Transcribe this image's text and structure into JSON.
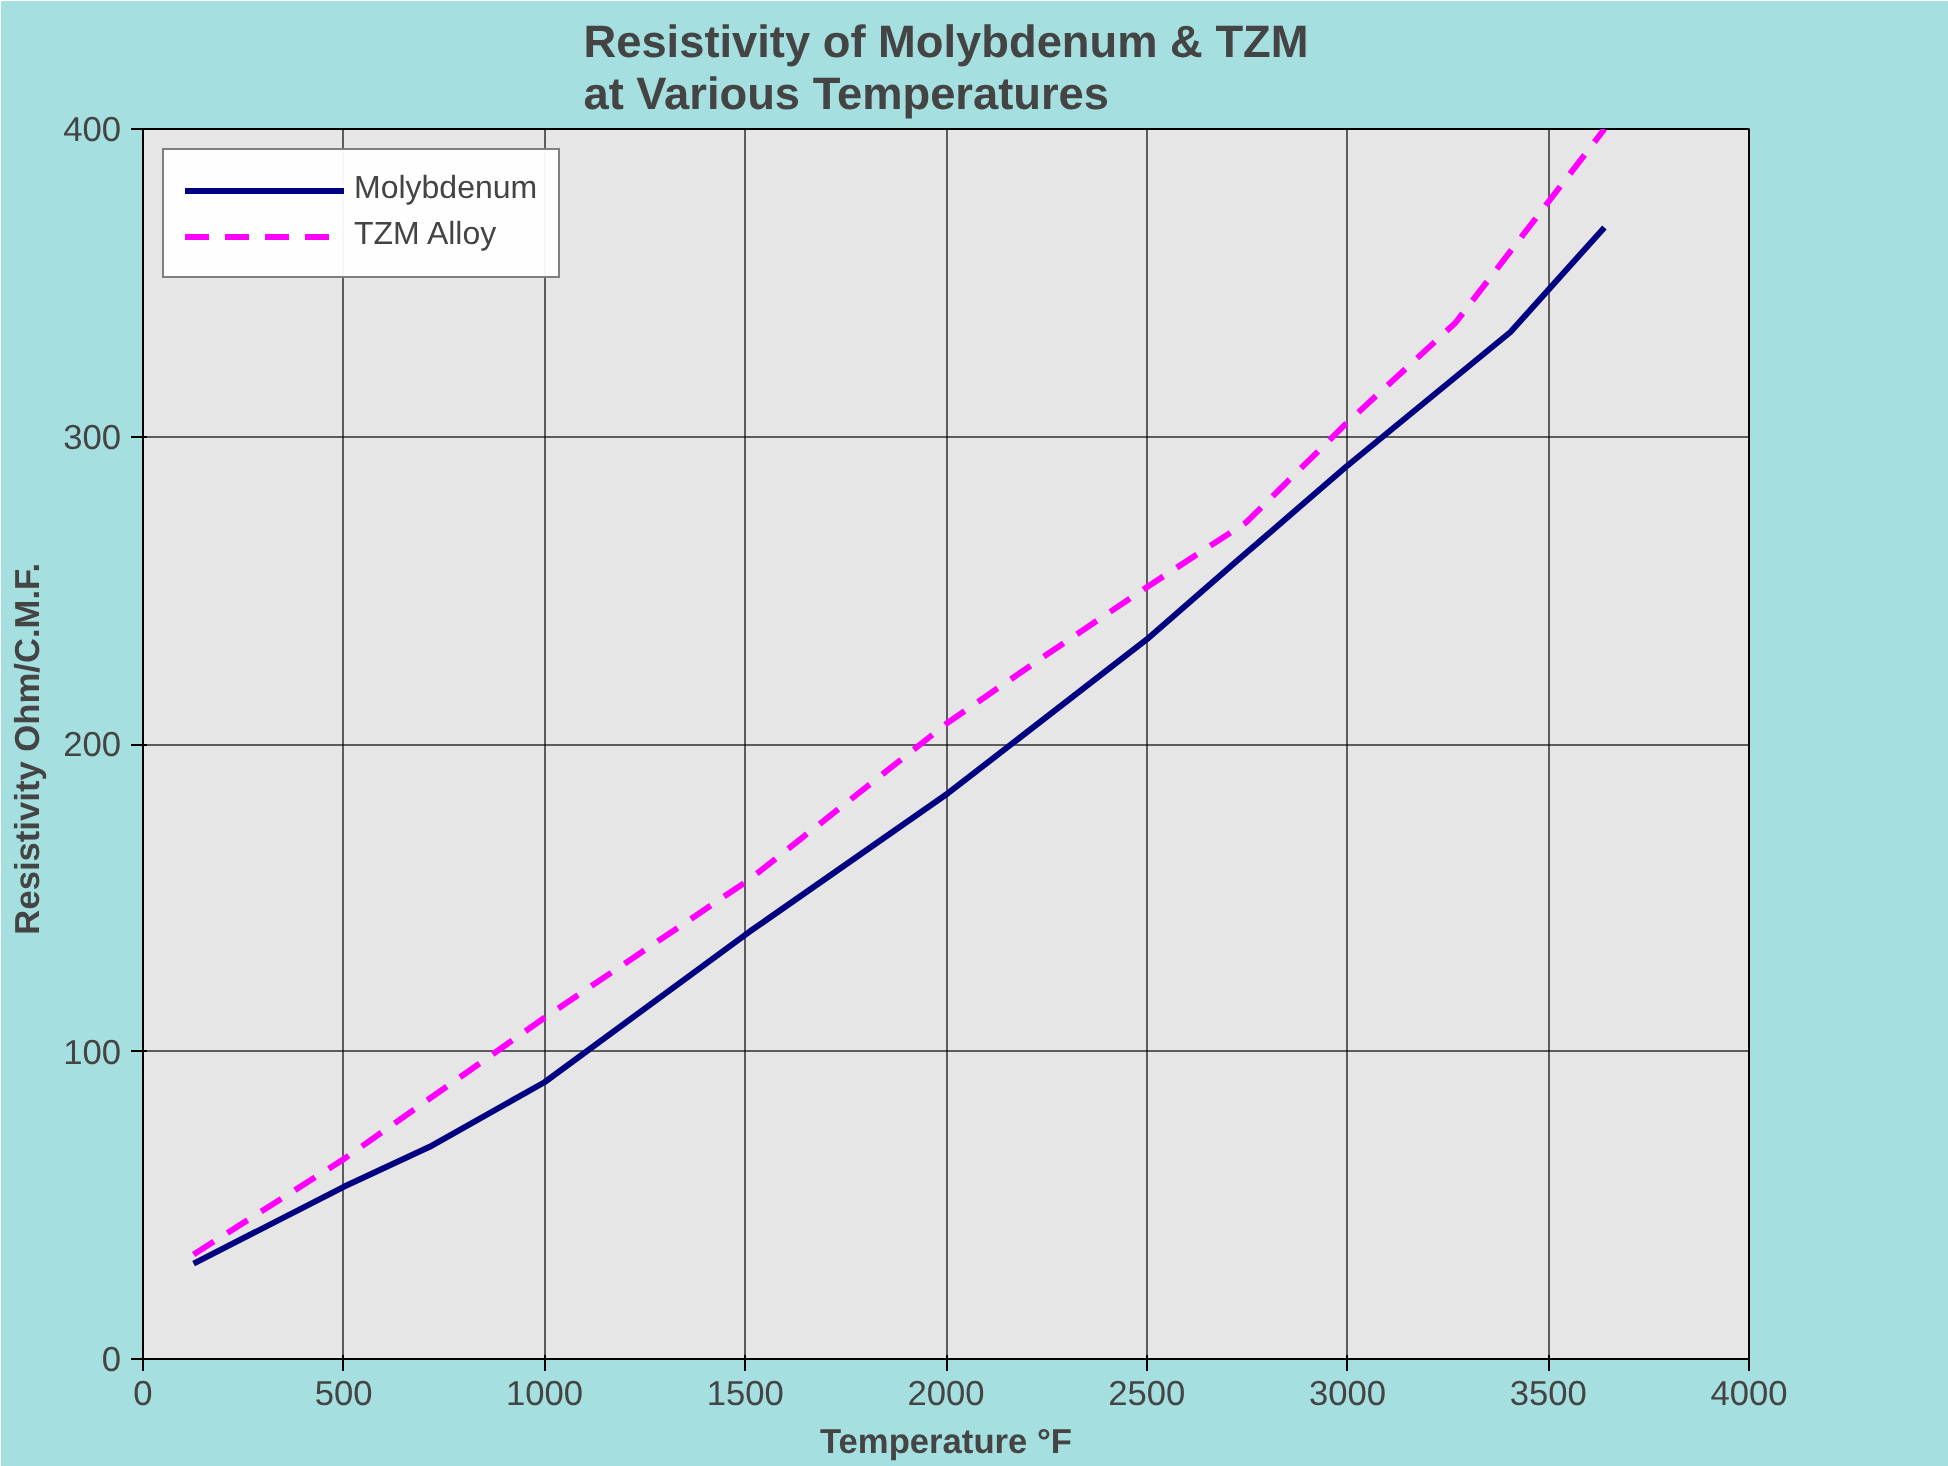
{
  "chart_data": {
    "type": "line",
    "title": "Resistivity of Molybdenum & TZM\nat Various Temperatures",
    "xlabel": "Temperature °F",
    "ylabel": "Resistivity  Ohm/C.M.F.",
    "xlim": [
      0,
      4000
    ],
    "xticks": [
      0,
      500,
      1000,
      1500,
      2000,
      2500,
      3000,
      3500,
      4000
    ],
    "ylim": [
      0,
      400
    ],
    "yticks": [
      0,
      100,
      200,
      300,
      400
    ],
    "grid": true,
    "legend": "top left",
    "series": [
      {
        "name": "Molybdenum",
        "color": "#000080",
        "line_style": "solid",
        "x": [
          126,
          500,
          714,
          1000,
          1511,
          2005,
          2500,
          2720,
          2995,
          3406,
          3640
        ],
        "values": [
          31,
          56,
          69,
          90,
          139,
          184,
          234,
          259,
          290,
          334,
          368
        ]
      },
      {
        "name": "TZM Alloy",
        "color": "#ff00ff",
        "line_style": "dashed",
        "x": [
          126,
          500,
          1000,
          1511,
          2005,
          2250,
          2500,
          2747,
          2995,
          3269,
          3640
        ],
        "values": [
          34,
          65,
          111,
          156,
          207,
          229,
          251,
          272,
          304,
          337,
          400
        ]
      }
    ]
  }
}
